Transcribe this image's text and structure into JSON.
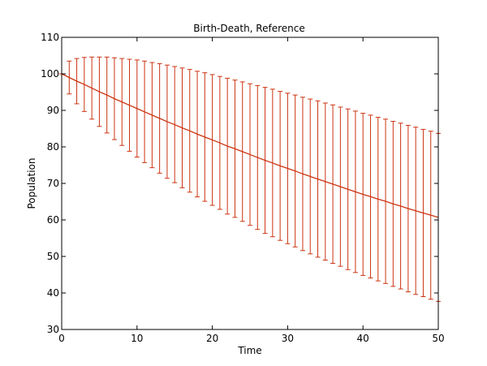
{
  "chart_data": {
    "type": "line",
    "title": "Birth-Death, Reference",
    "xlabel": "Time",
    "ylabel": "Population",
    "xlim": [
      0,
      50
    ],
    "ylim": [
      30,
      110
    ],
    "xticks": [
      0,
      10,
      20,
      30,
      40,
      50
    ],
    "yticks": [
      30,
      40,
      50,
      60,
      70,
      80,
      90,
      100,
      110
    ],
    "grid": false,
    "color": "#cc3311",
    "series": [
      {
        "x": [
          0,
          1,
          2,
          3,
          4,
          5,
          6,
          7,
          8,
          9,
          10,
          11,
          12,
          13,
          14,
          15,
          16,
          17,
          18,
          19,
          20,
          21,
          22,
          23,
          24,
          25,
          26,
          27,
          28,
          29,
          30,
          31,
          32,
          33,
          34,
          35,
          36,
          37,
          38,
          39,
          40,
          41,
          42,
          43,
          44,
          45,
          46,
          47,
          48,
          49,
          50
        ],
        "mean": [
          100.0,
          99.0,
          98.0,
          97.1,
          96.1,
          95.1,
          94.2,
          93.2,
          92.3,
          91.4,
          90.5,
          89.6,
          88.7,
          87.8,
          86.9,
          86.1,
          85.2,
          84.4,
          83.5,
          82.7,
          81.9,
          81.1,
          80.2,
          79.5,
          78.7,
          77.9,
          77.1,
          76.3,
          75.6,
          74.8,
          74.1,
          73.4,
          72.6,
          71.9,
          71.2,
          70.5,
          69.8,
          69.1,
          68.4,
          67.7,
          67.0,
          66.4,
          65.7,
          65.1,
          64.4,
          63.8,
          63.1,
          62.5,
          61.9,
          61.3,
          60.7
        ],
        "upper": [
          100.0,
          103.5,
          104.2,
          104.5,
          104.6,
          104.6,
          104.6,
          104.4,
          104.2,
          104.0,
          103.8,
          103.5,
          103.1,
          102.8,
          102.4,
          102.0,
          101.6,
          101.2,
          100.7,
          100.3,
          99.8,
          99.3,
          98.8,
          98.3,
          97.8,
          97.3,
          96.8,
          96.3,
          95.8,
          95.2,
          94.7,
          94.2,
          93.6,
          93.1,
          92.6,
          92.0,
          91.5,
          90.9,
          90.4,
          89.8,
          89.2,
          88.7,
          88.1,
          87.6,
          87.0,
          86.5,
          85.9,
          85.4,
          84.8,
          84.3,
          83.7
        ],
        "lower": [
          100.0,
          94.5,
          91.8,
          89.7,
          87.6,
          85.6,
          83.8,
          82.0,
          80.4,
          78.8,
          77.2,
          75.7,
          74.3,
          72.8,
          71.4,
          70.2,
          68.8,
          67.6,
          66.3,
          65.1,
          64.0,
          62.9,
          61.6,
          60.7,
          59.6,
          58.5,
          57.4,
          56.3,
          55.4,
          54.4,
          53.5,
          52.6,
          51.6,
          50.7,
          49.8,
          49.0,
          48.1,
          47.3,
          46.4,
          45.6,
          44.8,
          44.1,
          43.3,
          42.6,
          41.8,
          41.1,
          40.3,
          39.6,
          39.0,
          38.3,
          37.7
        ]
      }
    ]
  }
}
